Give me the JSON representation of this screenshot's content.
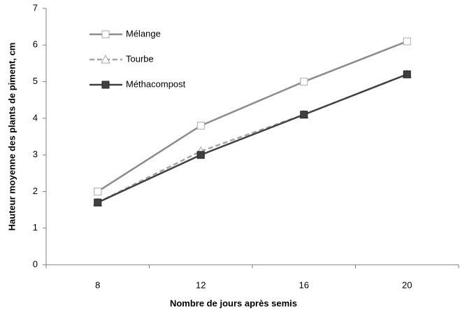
{
  "chart_data": {
    "type": "line",
    "x_label": "Nombre de jours après semis",
    "y_label": "Hauteur moyenne des plants de piment, cm",
    "categories": [
      "8",
      "12",
      "16",
      "20"
    ],
    "series": [
      {
        "name": "Mélange",
        "color": "#8c8c8c",
        "marker": "square-open",
        "dashed": false,
        "values": [
          2.0,
          3.8,
          5.0,
          6.1
        ]
      },
      {
        "name": "Tourbe",
        "color": "#a6a6a6",
        "marker": "triangle-open",
        "dashed": true,
        "values": [
          1.7,
          3.1,
          4.1,
          5.2
        ]
      },
      {
        "name": "Méthacompost",
        "color": "#404040",
        "marker": "square-filled",
        "dashed": false,
        "values": [
          1.7,
          3.0,
          4.1,
          5.2
        ]
      }
    ],
    "ylim": [
      0,
      7
    ],
    "yticks": [
      0,
      1,
      2,
      3,
      4,
      5,
      6,
      7
    ],
    "grid": false,
    "legend": "upper-left"
  }
}
